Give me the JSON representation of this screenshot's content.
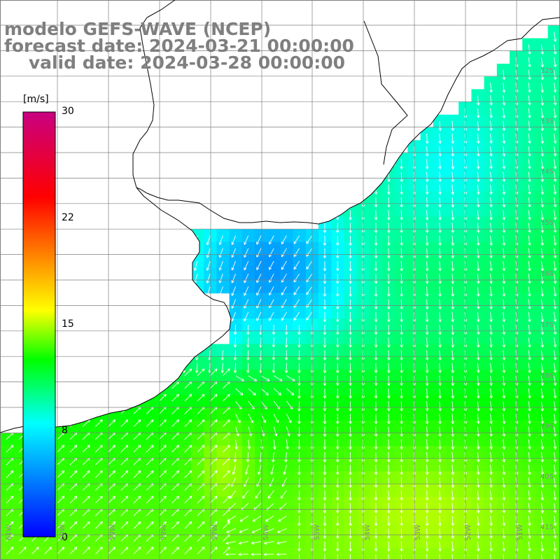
{
  "title": {
    "line1": "modelo GEFS-WAVE (NCEP)",
    "line2": "forecast date: 2024-03-21 00:00:00",
    "line3": "    valid date: 2024-03-28 00:00:00"
  },
  "colorbar": {
    "unit": "[m/s]",
    "ticks": [
      "30",
      "22",
      "15",
      "8",
      "0"
    ],
    "range": [
      0,
      30
    ],
    "colors": [
      "#0000ff",
      "#00ffff",
      "#00ff00",
      "#ffff00",
      "#ff7f00",
      "#ff0000",
      "#c80080"
    ]
  },
  "lat_labels": [
    "32S",
    "33S",
    "34S",
    "35S",
    "36S",
    "37S",
    "38S",
    "39S",
    "40S",
    "41S"
  ],
  "lon_labels": [
    "61W",
    "60W",
    "59W",
    "58W",
    "57W",
    "56W",
    "55W",
    "54W",
    "53W",
    "52W",
    "51W"
  ],
  "map": {
    "land_color": "#ffffff",
    "grid_color": "#7f7f7f",
    "coast_color": "#000000",
    "arrow_color": "#ffffff",
    "region": "Rio de la Plata / Uruguay coast",
    "field_variable": "wind speed"
  }
}
